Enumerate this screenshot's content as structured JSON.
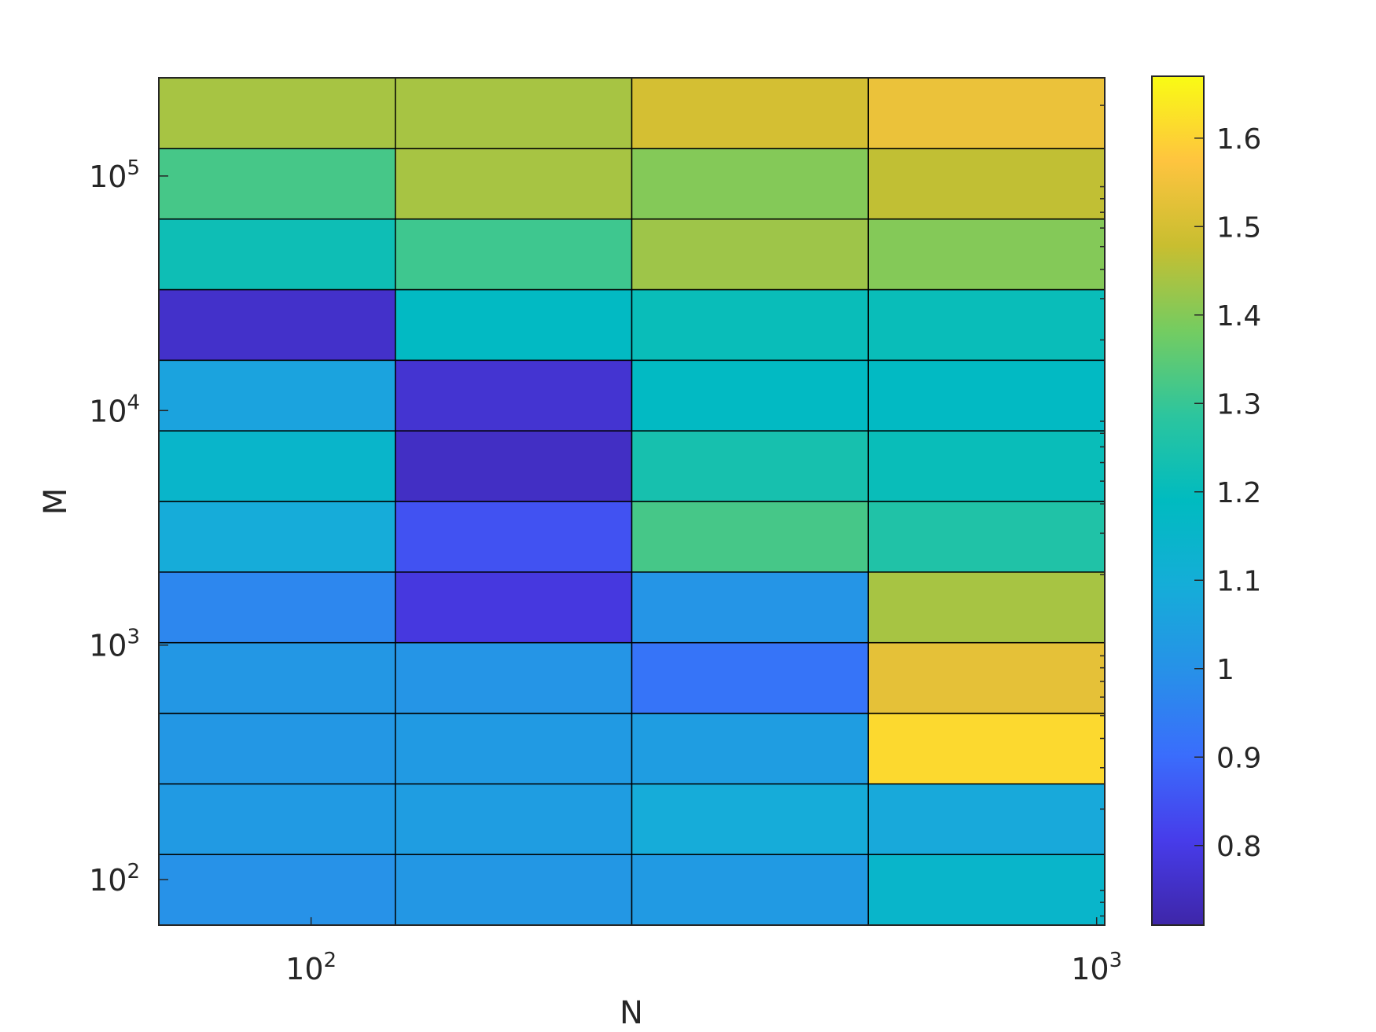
{
  "chart_data": {
    "type": "heatmap",
    "title": "",
    "xlabel": "N",
    "ylabel": "M",
    "x_scale": "log",
    "y_scale": "log",
    "x_ticks": [
      {
        "base": "10",
        "exp": "2",
        "value": 100
      },
      {
        "base": "10",
        "exp": "3",
        "value": 1000
      }
    ],
    "y_ticks": [
      {
        "base": "10",
        "exp": "2",
        "value": 100
      },
      {
        "base": "10",
        "exp": "3",
        "value": 1000
      },
      {
        "base": "10",
        "exp": "4",
        "value": 10000
      },
      {
        "base": "10",
        "exp": "5",
        "value": 100000
      }
    ],
    "x_edges": [
      64,
      128,
      256,
      512,
      1024
    ],
    "y_edges": [
      64,
      128,
      256,
      512,
      1024,
      2048,
      4096,
      8192,
      16384,
      32768,
      65536,
      131072,
      262144
    ],
    "values": [
      [
        1.0,
        1.02,
        1.03,
        1.15
      ],
      [
        1.03,
        1.04,
        1.09,
        1.08
      ],
      [
        1.02,
        1.03,
        1.04,
        1.61
      ],
      [
        1.02,
        1.01,
        0.92,
        1.53
      ],
      [
        0.97,
        0.79,
        1.01,
        1.44
      ],
      [
        1.09,
        0.85,
        1.32,
        1.26
      ],
      [
        1.15,
        0.75,
        1.24,
        1.21
      ],
      [
        1.06,
        0.77,
        1.18,
        1.18
      ],
      [
        0.76,
        1.18,
        1.21,
        1.21
      ],
      [
        1.22,
        1.31,
        1.43,
        1.4
      ],
      [
        1.32,
        1.44,
        1.4,
        1.47
      ],
      [
        1.44,
        1.44,
        1.5,
        1.54
      ]
    ],
    "colorbar": {
      "min": 0.71,
      "max": 1.67,
      "ticks": [
        "0.8",
        "0.9",
        "1",
        "1.1",
        "1.2",
        "1.3",
        "1.4",
        "1.5",
        "1.6"
      ],
      "colormap": "parula"
    },
    "grid": false,
    "legend": "none"
  }
}
